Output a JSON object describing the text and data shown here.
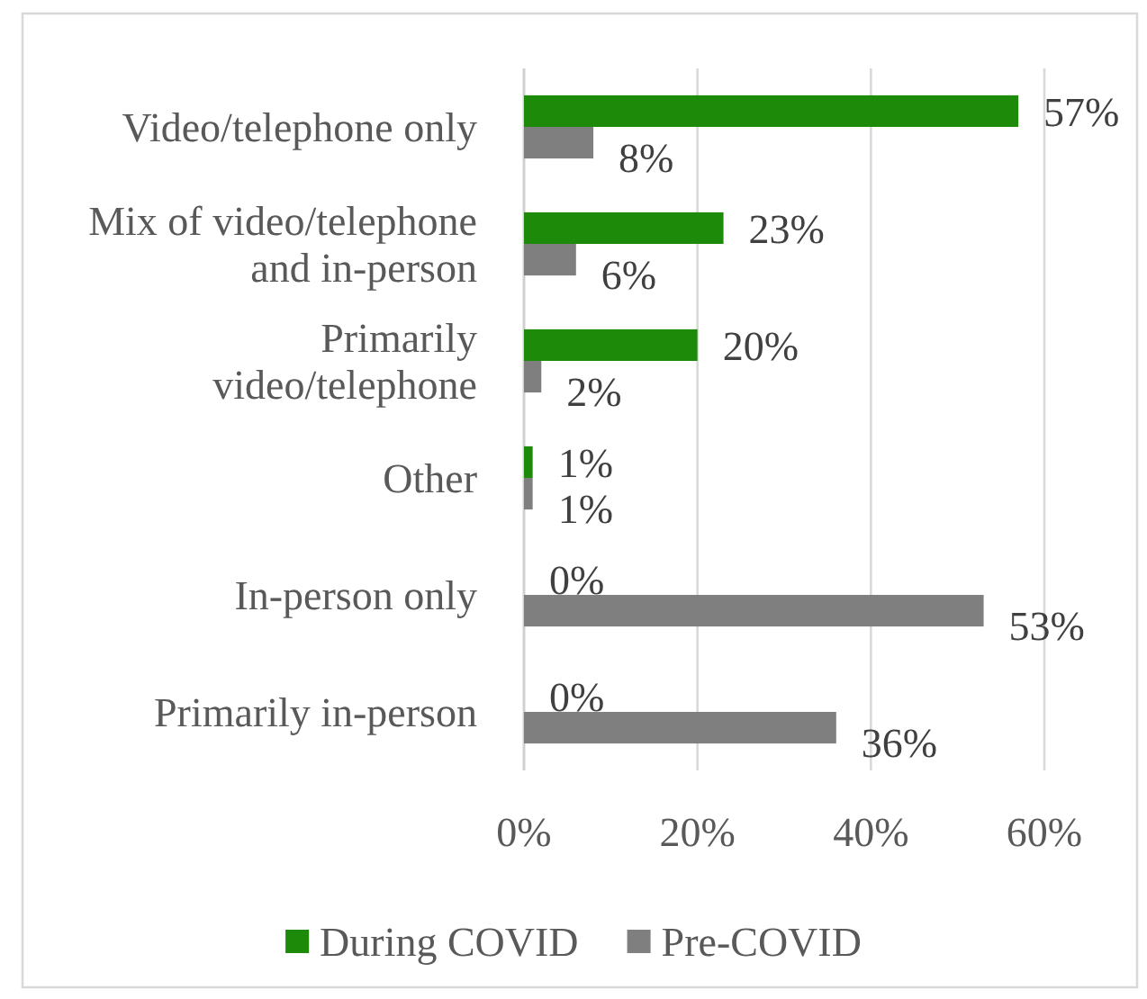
{
  "chart_data": {
    "type": "bar",
    "orientation": "horizontal",
    "categories": [
      "Video/telephone only",
      "Mix of video/telephone and in-person",
      "Primarily video/telephone",
      "Other",
      "In-person only",
      "Primarily in-person"
    ],
    "series": [
      {
        "name": "During COVID",
        "color": "#1e8a0a",
        "values": [
          57,
          23,
          20,
          1,
          0,
          0
        ],
        "value_labels": [
          "57%",
          "23%",
          "20%",
          "1%",
          "0%",
          "0%"
        ]
      },
      {
        "name": "Pre-COVID",
        "color": "#7f7f7f",
        "values": [
          8,
          6,
          2,
          1,
          53,
          36
        ],
        "value_labels": [
          "8%",
          "6%",
          "2%",
          "1%",
          "53%",
          "36%"
        ]
      }
    ],
    "xlim": [
      0,
      60
    ],
    "xticks": [
      {
        "value": 0,
        "label": "0%"
      },
      {
        "value": 20,
        "label": "20%"
      },
      {
        "value": 40,
        "label": "40%"
      },
      {
        "value": 60,
        "label": "60%"
      }
    ],
    "grid": "x",
    "legend": "bottom"
  }
}
